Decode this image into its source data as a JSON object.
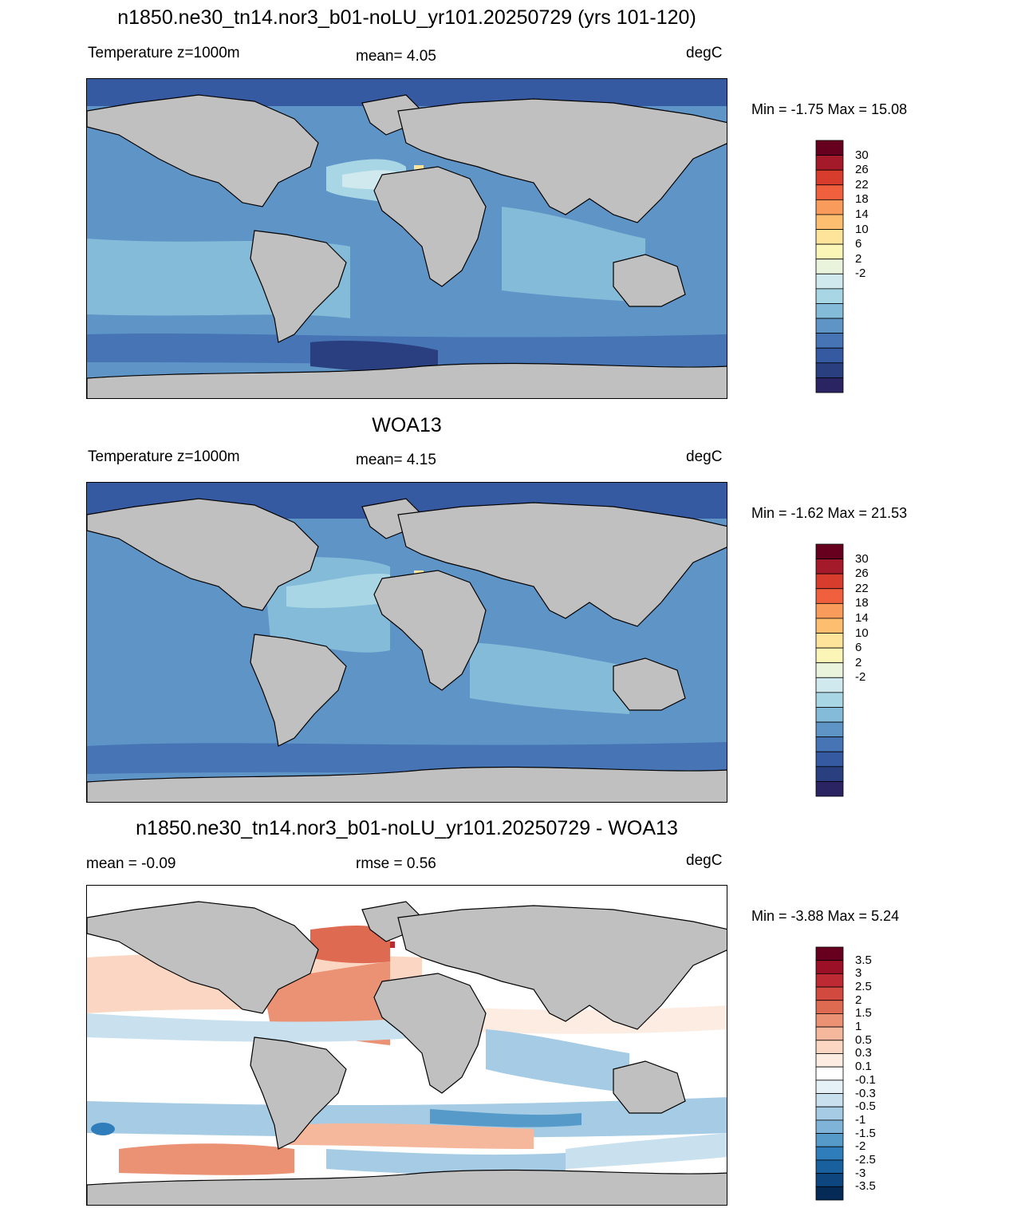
{
  "panels": [
    {
      "title": "n1850.ne30_tn14.nor3_b01-noLU_yr101.20250729 (yrs 101-120)",
      "left_label": "Temperature z=1000m",
      "center_label": "mean=   4.05",
      "units": "degC",
      "minmax": "Min =  -1.75 Max =  15.08",
      "colorbar_labels": [
        "30",
        "26",
        "22",
        "18",
        "14",
        "10",
        "6",
        "2",
        "-2"
      ],
      "colorbar_colors": [
        "#67001f",
        "#a51a2a",
        "#d73c2c",
        "#f0603f",
        "#f99c5b",
        "#fdbf6f",
        "#fee49a",
        "#fbf6b8",
        "#eaf4dc",
        "#cfe9ef",
        "#a9d6e5",
        "#84bbd9",
        "#5f94c7",
        "#4674b5",
        "#365aa1",
        "#2a3f7f",
        "#2b2463"
      ]
    },
    {
      "title": "WOA13",
      "left_label": "Temperature z=1000m",
      "center_label": "mean=   4.15",
      "units": "degC",
      "minmax": "Min =  -1.62 Max =  21.53",
      "colorbar_labels": [
        "30",
        "26",
        "22",
        "18",
        "14",
        "10",
        "6",
        "2",
        "-2"
      ],
      "colorbar_colors": [
        "#67001f",
        "#a51a2a",
        "#d73c2c",
        "#f0603f",
        "#f99c5b",
        "#fdbf6f",
        "#fee49a",
        "#fbf6b8",
        "#eaf4dc",
        "#cfe9ef",
        "#a9d6e5",
        "#84bbd9",
        "#5f94c7",
        "#4674b5",
        "#365aa1",
        "#2a3f7f",
        "#2b2463"
      ]
    },
    {
      "title": "n1850.ne30_tn14.nor3_b01-noLU_yr101.20250729 - WOA13",
      "left_label": "mean =  -0.09",
      "center_label": "rmse =   0.56",
      "units": "degC",
      "minmax": "Min =  -3.88 Max =   5.24",
      "colorbar_labels": [
        "3.5",
        "3",
        "2.5",
        "2",
        "1.5",
        "1",
        "0.5",
        "0.3",
        "0.1",
        "-0.1",
        "-0.3",
        "-0.5",
        "-1",
        "-1.5",
        "-2",
        "-2.5",
        "-3",
        "-3.5"
      ],
      "colorbar_colors": [
        "#67001f",
        "#9c1027",
        "#bd2a33",
        "#d1493f",
        "#df6a52",
        "#eb9174",
        "#f5b89c",
        "#fbd7c3",
        "#fdece2",
        "#ffffff",
        "#e6f0f7",
        "#c9e0ee",
        "#a5cce4",
        "#7fb4d8",
        "#559ac9",
        "#2f7ebb",
        "#19609f",
        "#0e467f",
        "#062a56"
      ]
    }
  ],
  "colors": {
    "land": "#c0c0c0",
    "coast": "#000000"
  }
}
